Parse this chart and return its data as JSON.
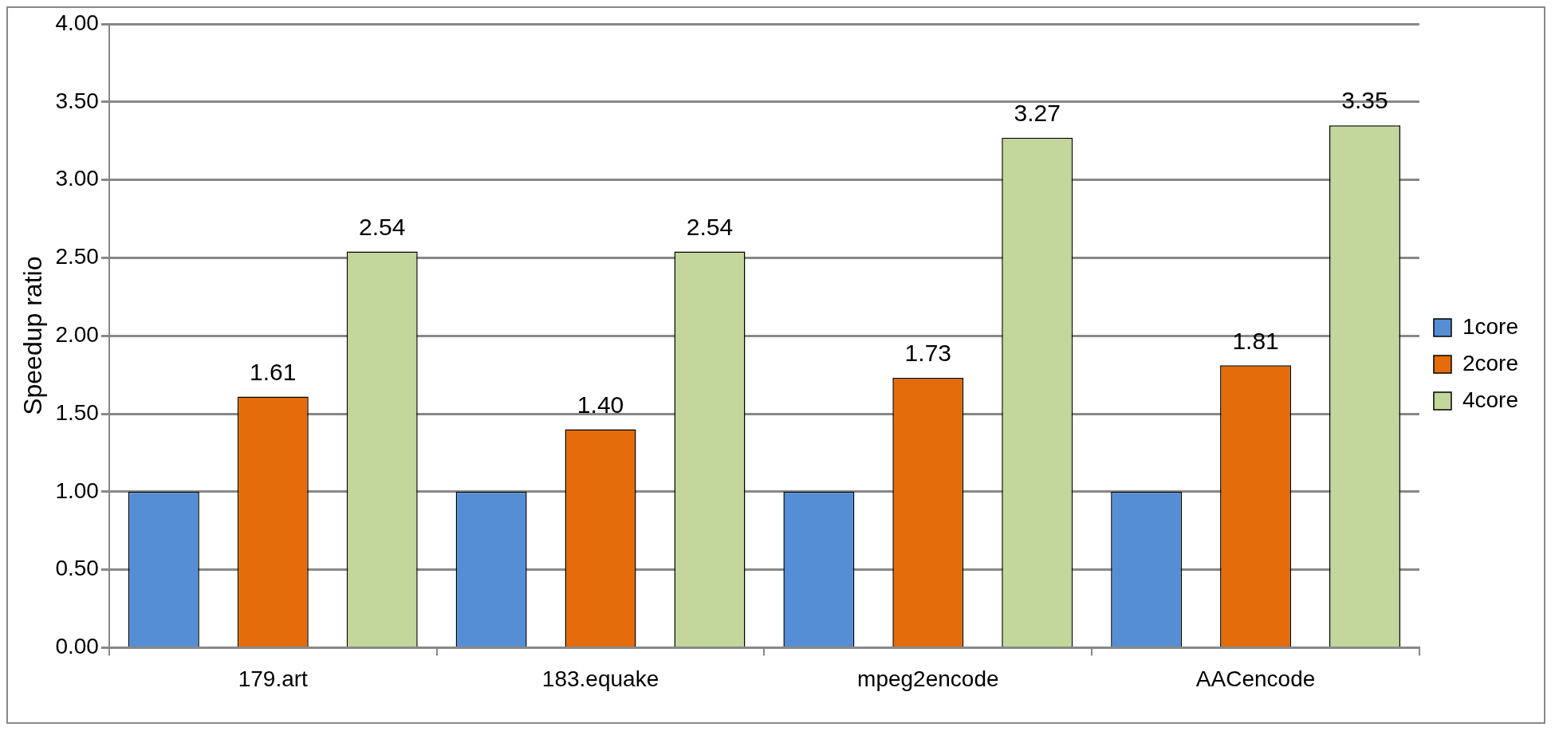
{
  "chart_data": {
    "type": "bar",
    "ylabel": "Speedup ratio",
    "categories": [
      "179.art",
      "183.equake",
      "mpeg2encode",
      "AACencode"
    ],
    "series": [
      {
        "name": "1core",
        "color": "#558ed5",
        "values": [
          1.0,
          1.0,
          1.0,
          1.0
        ]
      },
      {
        "name": "2core",
        "color": "#e46c0a",
        "values": [
          1.61,
          1.4,
          1.73,
          1.81
        ],
        "value_labels": [
          "1.61",
          "1.40",
          "1.73",
          "1.81"
        ]
      },
      {
        "name": "4core",
        "color": "#c3d69b",
        "values": [
          2.54,
          2.54,
          3.27,
          3.35
        ],
        "value_labels": [
          "2.54",
          "2.54",
          "3.27",
          "3.35"
        ]
      }
    ],
    "ylim": [
      0,
      4
    ],
    "yticks": [
      {
        "value": 0,
        "label": "0.00"
      },
      {
        "value": 0.5,
        "label": "0.50"
      },
      {
        "value": 1,
        "label": "1.00"
      },
      {
        "value": 1.5,
        "label": "1.50"
      },
      {
        "value": 2,
        "label": "2.00"
      },
      {
        "value": 2.5,
        "label": "2.50"
      },
      {
        "value": 3,
        "label": "3.00"
      },
      {
        "value": 3.5,
        "label": "3.50"
      },
      {
        "value": 4,
        "label": "4.00"
      }
    ],
    "grid": "y",
    "legend": "right"
  }
}
